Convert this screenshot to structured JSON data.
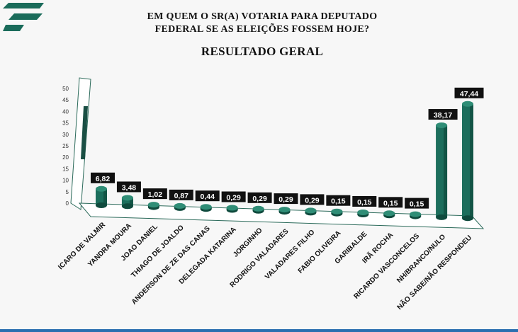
{
  "header": {
    "title_line1": "EM QUEM O SR(A) VOTARIA PARA DEPUTADO",
    "title_line2": "FEDERAL SE AS ELEIÇÕES FOSSEM HOJE?",
    "subtitle": "RESULTADO GERAL"
  },
  "colors": {
    "logo": "#1a6b5a",
    "bar": "#1c6e5c",
    "bar_dark": "#0f4a3d",
    "label_bg": "#111111",
    "label_text": "#ffffff"
  },
  "chart_data": {
    "type": "bar",
    "title": "RESULTADO GERAL",
    "xlabel": "",
    "ylabel": "",
    "ylim": [
      0,
      50
    ],
    "yticks": [
      "0",
      "5",
      "10",
      "15",
      "20",
      "25",
      "30",
      "35",
      "40",
      "45",
      "50"
    ],
    "grid": false,
    "categories": [
      "ICARO DE VALMIR",
      "YANDRA MOURA",
      "JOAO DANIEL",
      "THIAGO DE JOALDO",
      "ANDERSON DE ZE DAS CANAS",
      "DELEGADA KATARINA",
      "JORGINHO",
      "RODRIGO VALADARES",
      "VALADARES FILHO",
      "FABIO OLIVEIRA",
      "GARIBALDE",
      "IRÃ ROCHA",
      "RICARDO VASCONCELOS",
      "NH/BRANCO/NULO",
      "NÃO SABE/NÃO RESPONDEU"
    ],
    "values": [
      6.82,
      3.48,
      1.02,
      0.87,
      0.44,
      0.29,
      0.29,
      0.29,
      0.29,
      0.15,
      0.15,
      0.15,
      0.15,
      38.17,
      47.44
    ],
    "data_labels": [
      "6,82",
      "3,48",
      "1,02",
      "0,87",
      "0,44",
      "0,29",
      "0,29",
      "0,29",
      "0,29",
      "0,15",
      "0,15",
      "0,15",
      "0,15",
      "38,17",
      "47,44"
    ]
  }
}
